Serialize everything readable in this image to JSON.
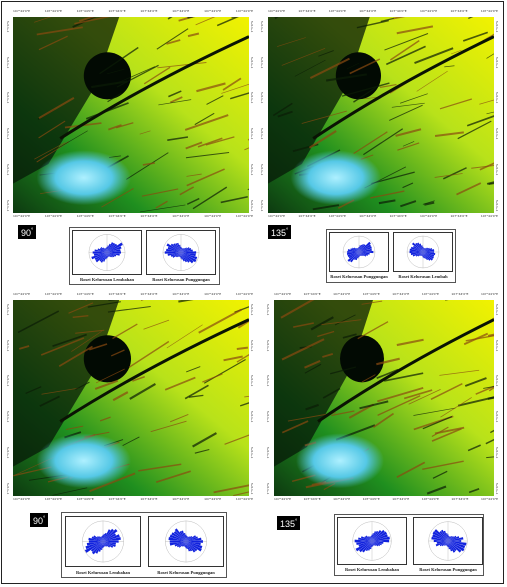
{
  "panels": [
    {
      "azimuth": "90",
      "rose_titles": [
        "Roset Kelurusan Lembahan",
        "Roset Kelurusan Punggungan"
      ]
    },
    {
      "azimuth": "135",
      "rose_titles": [
        "Roset Kelurusan Punggungan",
        "Roset Kelurusan Lembah"
      ]
    },
    {
      "azimuth": "90",
      "rose_titles": [
        "Roset Kelurusan Lembahan",
        "Roset Kelurusan Punggungan"
      ]
    },
    {
      "azimuth": "135",
      "rose_titles": [
        "Roset Kelurusan Lembahan",
        "Roset Kelurusan Punggungan"
      ]
    }
  ],
  "axis_tick_label": "107°44'0\"E",
  "side_tick_label": "7°5'0\"S",
  "colors": {
    "lowland_green": "#1f8f1f",
    "highland_yellow": "#f2f200",
    "crater_cyan": "#55c8e6",
    "rose_blue": "#1122dd"
  }
}
